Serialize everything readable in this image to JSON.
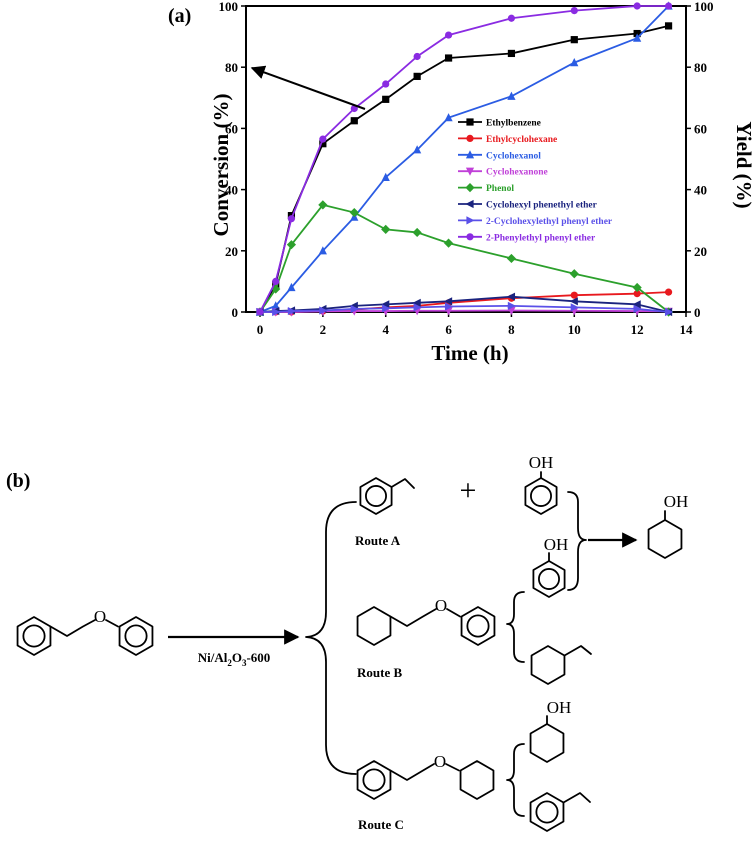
{
  "panel_a": {
    "label": "(a)"
  },
  "panel_b": {
    "label": "(b)",
    "plus_sign": "+",
    "catalyst": {
      "prefix": "Ni/Al",
      "sub1": "2",
      "mid": "O",
      "sub2": "3",
      "suffix": "-600"
    },
    "routes": [
      "Route A",
      "Route B",
      "Route C"
    ],
    "hydroxyl": "OH",
    "ether_o": "O"
  },
  "chart_data": {
    "type": "line",
    "title": "",
    "xlabel": "Time (h)",
    "ylabel": "Conversion (%)",
    "ylabel_right": "Yield (%)",
    "xlim": [
      0,
      14
    ],
    "ylim": [
      0,
      100
    ],
    "ylim_right": [
      0,
      100
    ],
    "x_ticks": [
      0,
      2,
      4,
      6,
      8,
      10,
      12,
      14
    ],
    "y_ticks": [
      0,
      20,
      40,
      60,
      80,
      100
    ],
    "y_ticks_right": [
      0,
      20,
      40,
      60,
      80,
      100
    ],
    "grid": false,
    "legend_position": "right",
    "annotation": "arrow pointing from Ethylbenzene curve to left (Conversion) axis",
    "series": [
      {
        "name": "Ethylbenzene",
        "color": "#000000",
        "marker": "square",
        "x": [
          0,
          0.5,
          1,
          2,
          3,
          4,
          5,
          6,
          8,
          10,
          12,
          13
        ],
        "y": [
          0,
          9,
          31.5,
          55,
          62.5,
          69.5,
          77,
          83,
          84.5,
          89,
          91,
          93.5
        ]
      },
      {
        "name": "Ethylcyclohexane",
        "color": "#e8191e",
        "marker": "circle",
        "x": [
          0,
          0.5,
          1,
          2,
          3,
          4,
          5,
          6,
          8,
          10,
          12,
          13
        ],
        "y": [
          0,
          0,
          0,
          0.3,
          0.8,
          1.5,
          2,
          3,
          4.5,
          5.5,
          6,
          6.5
        ]
      },
      {
        "name": "Cyclohexanol",
        "color": "#2b5ce3",
        "marker": "triangle-up",
        "x": [
          0,
          0.5,
          1,
          2,
          3,
          4,
          5,
          6,
          8,
          10,
          12,
          13
        ],
        "y": [
          0,
          2,
          8,
          20,
          31,
          44,
          53,
          63.5,
          70.5,
          81.5,
          89.5,
          100
        ]
      },
      {
        "name": "Cyclohexanone",
        "color": "#c040d8",
        "marker": "triangle-down",
        "x": [
          0,
          0.5,
          1,
          2,
          3,
          4,
          5,
          6,
          8,
          10,
          12,
          13
        ],
        "y": [
          0,
          0,
          0,
          0.2,
          0.3,
          0.3,
          0.4,
          0.4,
          0.5,
          0.4,
          0.3,
          0.2
        ]
      },
      {
        "name": "Phenol",
        "color": "#2ca02c",
        "marker": "diamond",
        "x": [
          0,
          0.5,
          1,
          2,
          3,
          4,
          5,
          6,
          8,
          10,
          12,
          13
        ],
        "y": [
          0,
          7.5,
          22,
          35,
          32.5,
          27,
          26,
          22.5,
          17.5,
          12.5,
          8,
          0
        ]
      },
      {
        "name": "Cyclohexyl phenethyl ether",
        "color": "#1a237e",
        "marker": "triangle-left",
        "x": [
          0,
          0.5,
          1,
          2,
          3,
          4,
          5,
          6,
          8,
          10,
          12,
          13
        ],
        "y": [
          0,
          0.3,
          0.5,
          1,
          2,
          2.5,
          3,
          3.5,
          5,
          3.5,
          2.5,
          0
        ]
      },
      {
        "name": "2-Cyclohexylethyl phenyl ether",
        "color": "#5a50e8",
        "marker": "triangle-right",
        "x": [
          0,
          0.5,
          1,
          2,
          3,
          4,
          5,
          6,
          8,
          10,
          12,
          13
        ],
        "y": [
          0,
          0,
          0.3,
          0.5,
          1,
          1.2,
          1.5,
          1.8,
          2,
          1.5,
          1,
          0
        ]
      },
      {
        "name": "2-Phenylethyl phenyl ether",
        "color": "#8a2be2",
        "marker": "circle",
        "x": [
          0,
          0.5,
          1,
          2,
          3,
          4,
          5,
          6,
          8,
          10,
          12,
          13
        ],
        "y": [
          0,
          10,
          30.5,
          56.5,
          66.5,
          74.5,
          83.5,
          90.5,
          96,
          98.5,
          100,
          100
        ]
      }
    ]
  },
  "colors": {
    "axis": "#000000",
    "background": "#ffffff"
  }
}
